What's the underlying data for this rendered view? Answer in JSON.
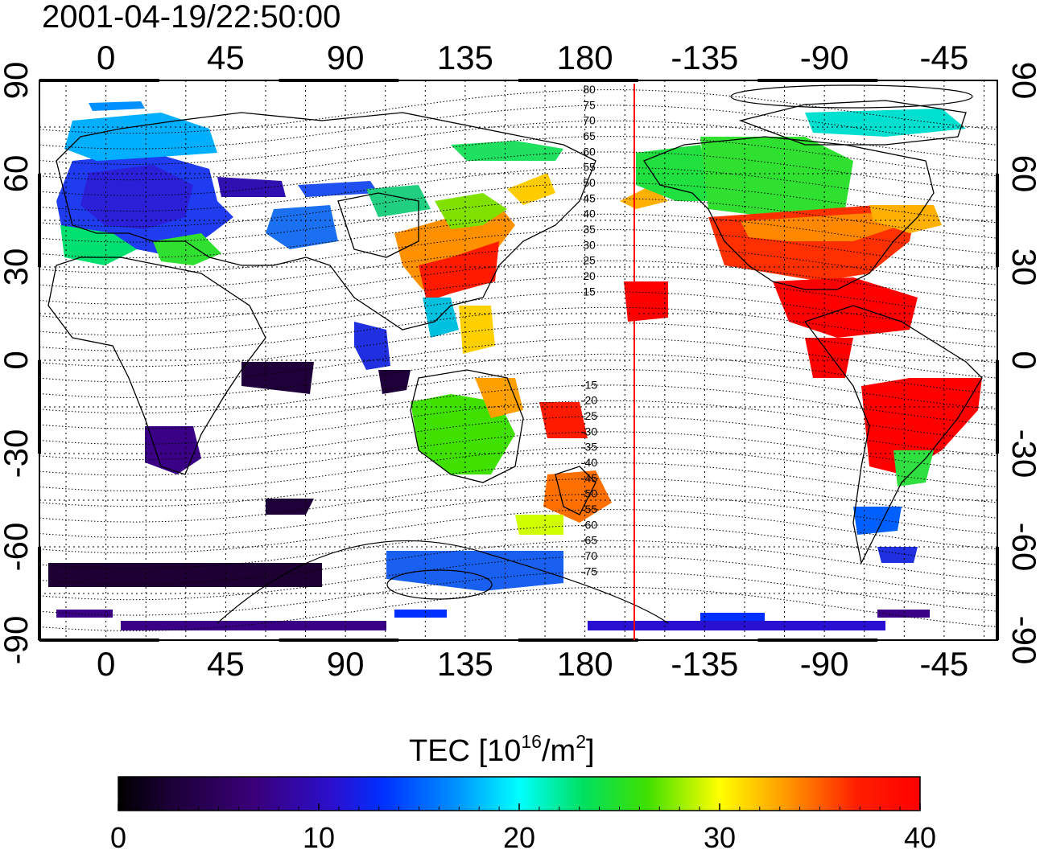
{
  "title": "2001-04-19/22:50:00",
  "top_lon_ticks": [
    "0",
    "45",
    "90",
    "135",
    "180",
    "-135",
    "-90",
    "-45"
  ],
  "bottom_lon_ticks": [
    "0",
    "45",
    "90",
    "135",
    "180",
    "-135",
    "-90",
    "-45"
  ],
  "left_lat_ticks": [
    "90",
    "60",
    "30",
    "0",
    "-30",
    "-60",
    "-90"
  ],
  "right_lat_ticks": [
    "90",
    "60",
    "30",
    "0",
    "-30",
    "-60",
    "-90"
  ],
  "contour_labels": [
    "80",
    "75",
    "70",
    "65",
    "60",
    "55",
    "50",
    "45",
    "40",
    "35",
    "30",
    "25",
    "20",
    "15",
    "-15",
    "-20",
    "-25",
    "-30",
    "-35",
    "-40",
    "-45",
    "-50",
    "-55",
    "-60",
    "-65",
    "-70",
    "-75"
  ],
  "colorbar": {
    "label_main": "TEC  [10",
    "label_sup1": "16",
    "label_mid": "/m",
    "label_sup2": "2",
    "label_end": "]",
    "ticks": [
      "0",
      "10",
      "20",
      "30",
      "40"
    ],
    "range": [
      0,
      40
    ]
  },
  "map": {
    "lon_range_deg": [
      -25,
      335
    ],
    "lat_range_deg": [
      -90,
      90
    ],
    "grid_spacing_deg": 15,
    "subsolar_meridian_marker_color": "#ff0000",
    "grid_style": "dotted"
  },
  "colors": {
    "background": "#ffffff",
    "frame": "#000000",
    "marker_line": "#ff0000"
  }
}
